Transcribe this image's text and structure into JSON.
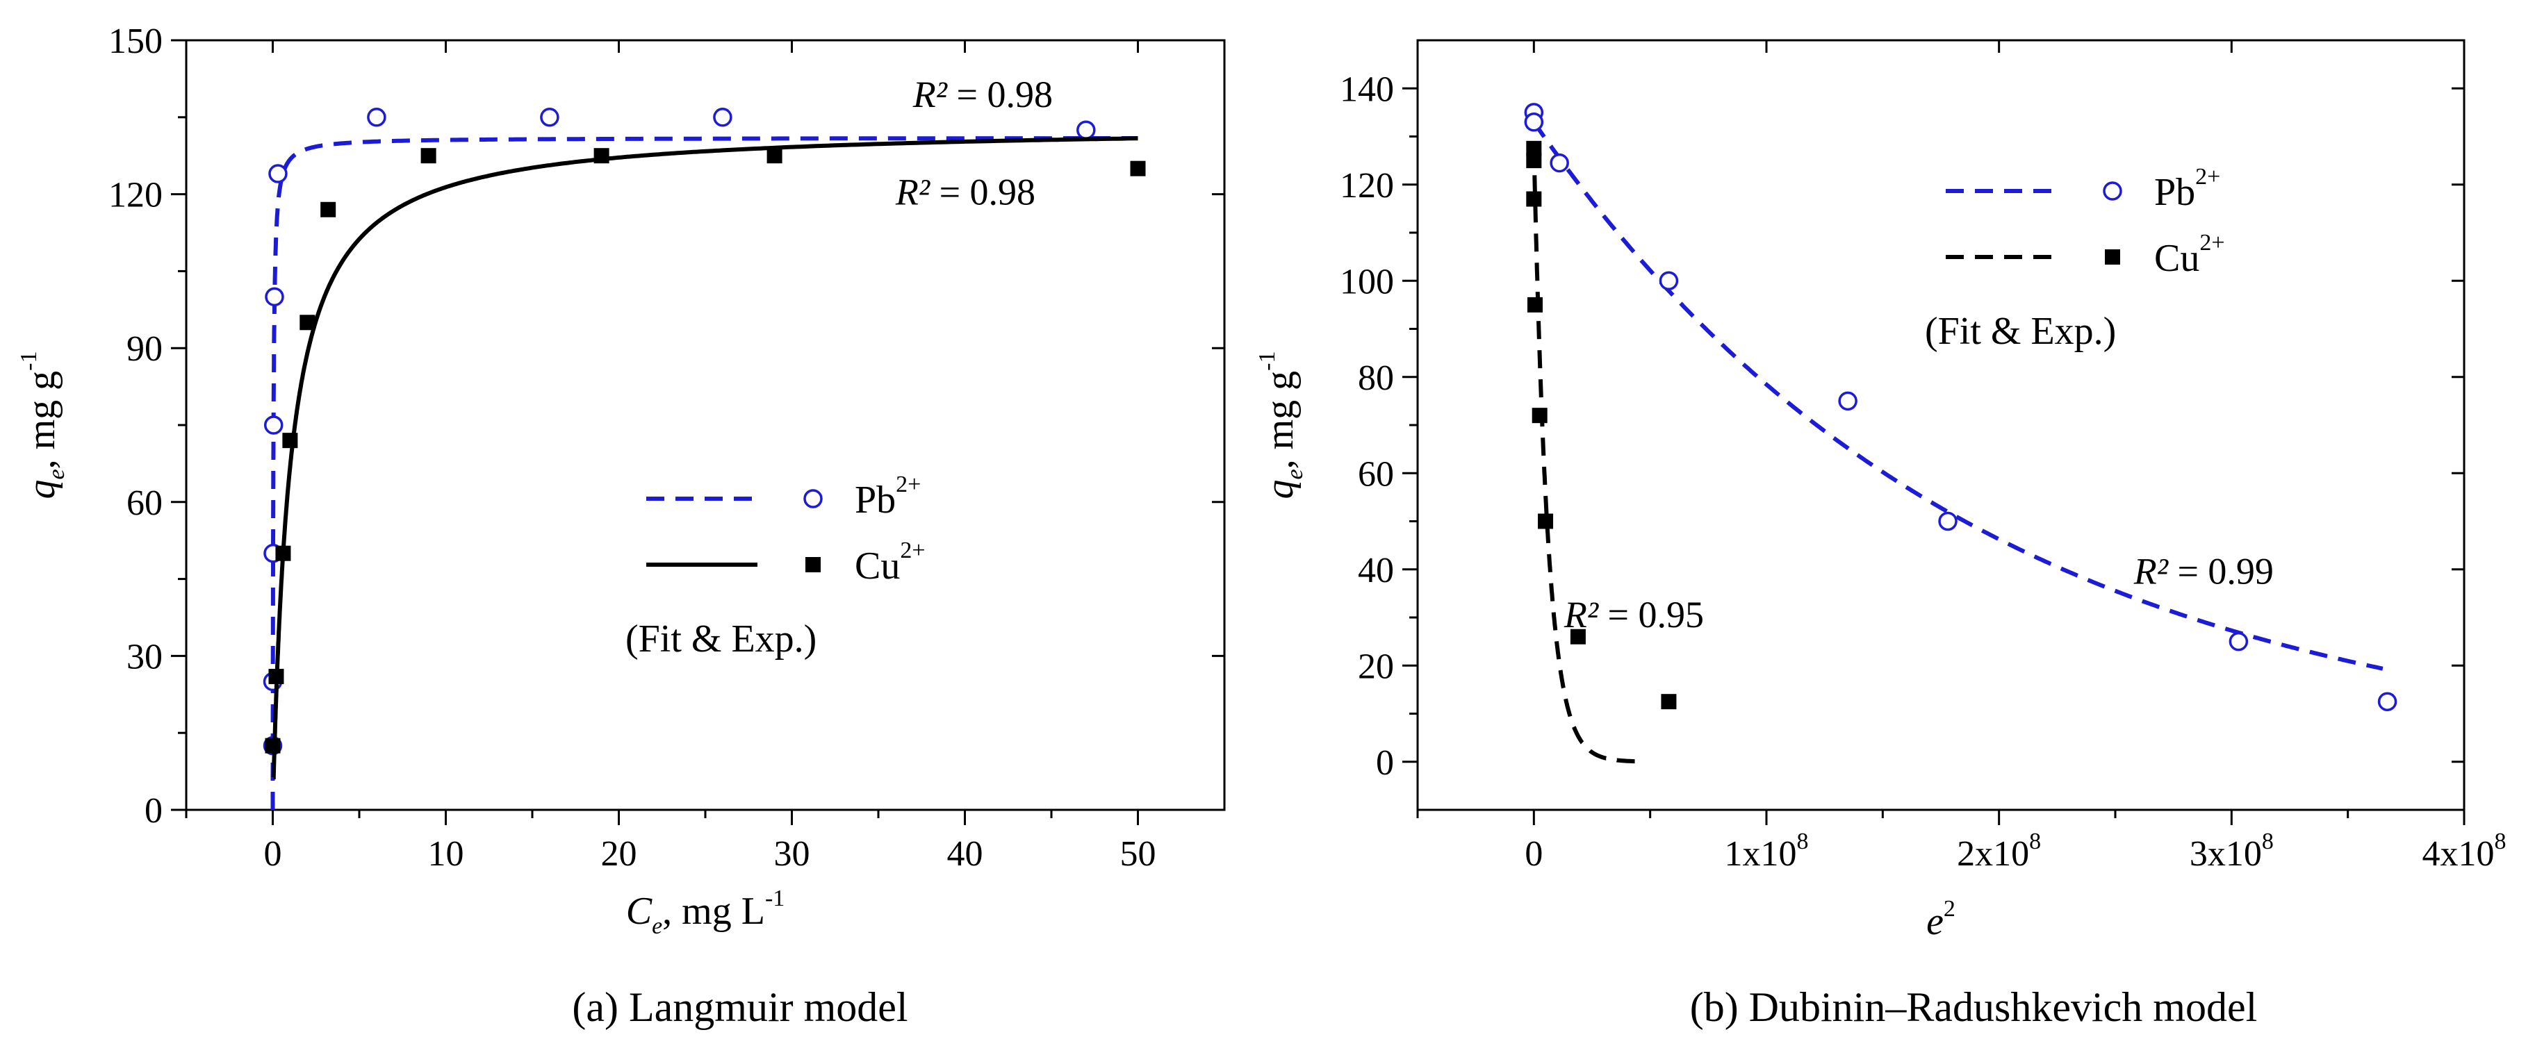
{
  "chart_data": [
    {
      "id": "a",
      "type": "scatter",
      "caption": "(a) Langmuir model",
      "xlabel": {
        "var": "C",
        "sub": "e",
        "unit": ", mg L",
        "unit_sup": "-1"
      },
      "ylabel": {
        "var": "q",
        "sub": "e",
        "unit": ", mg g",
        "unit_sup": "-1"
      },
      "xlim": [
        -5,
        55
      ],
      "ylim": [
        0,
        150
      ],
      "xticks": [
        0,
        10,
        20,
        30,
        40,
        50
      ],
      "yticks": [
        0,
        30,
        60,
        90,
        120,
        150
      ],
      "xtick_labels": [
        "0",
        "10",
        "20",
        "30",
        "40",
        "50"
      ],
      "ytick_labels": [
        "0",
        "30",
        "60",
        "90",
        "120",
        "150"
      ],
      "series": [
        {
          "name": "Pb",
          "ion_sup": "2+",
          "marker": "open-circle",
          "color": "#1c1cd6",
          "fit_style": "dashed",
          "x": [
            0.0,
            0.0,
            0.02,
            0.05,
            0.1,
            0.3,
            6,
            16,
            26,
            47
          ],
          "y": [
            12.5,
            25,
            50,
            75,
            100,
            124,
            135,
            135,
            135,
            132.5
          ],
          "fit": {
            "model": "langmuir",
            "qmax": 131,
            "K": 30,
            "x_range": [
              0,
              50
            ]
          },
          "r2_label": {
            "text": "= 0.98",
            "at_x": 37,
            "at_y": 137
          }
        },
        {
          "name": "Cu",
          "ion_sup": "2+",
          "marker": "filled-square",
          "color": "#000000",
          "fit_style": "solid",
          "x": [
            0.0,
            0.2,
            0.6,
            1.0,
            2.0,
            3.2,
            9,
            19,
            29,
            50
          ],
          "y": [
            12.5,
            26,
            50,
            72,
            95,
            117,
            127.5,
            127.5,
            127.5,
            125
          ],
          "fit": {
            "model": "langmuir",
            "qmax": 133.5,
            "K": 1.0,
            "x_range": [
              0.05,
              50
            ]
          },
          "r2_label": {
            "text": "= 0.98",
            "at_x": 36,
            "at_y": 118
          }
        }
      ],
      "legend_note": "(Fit  &  Exp.)"
    },
    {
      "id": "b",
      "type": "scatter",
      "caption": "(b) Dubinin–Radushkevich model",
      "xlabel": {
        "var": "e",
        "sup": "2"
      },
      "ylabel": {
        "var": "q",
        "sub": "e",
        "unit": ", mg g",
        "unit_sup": "-1"
      },
      "xlim": [
        -50000000,
        400000000
      ],
      "ylim": [
        -10,
        150
      ],
      "xticks": [
        0,
        100000000,
        200000000,
        300000000,
        400000000
      ],
      "yticks": [
        0,
        20,
        40,
        60,
        80,
        100,
        120,
        140
      ],
      "xtick_labels": [
        "0",
        "1x10",
        "2x10",
        "3x10",
        "4x10"
      ],
      "xtick_exp": "8",
      "ytick_labels": [
        "0",
        "20",
        "40",
        "60",
        "80",
        "100",
        "120",
        "140"
      ],
      "series": [
        {
          "name": "Pb",
          "ion_sup": "2+",
          "marker": "open-circle",
          "color": "#1c1cd6",
          "fit_style": "dashed",
          "x": [
            0,
            0,
            11000000,
            58000000,
            135000000,
            178000000,
            303000000,
            367000000
          ],
          "y": [
            135,
            133,
            124.5,
            100,
            75,
            50,
            25,
            12.5
          ],
          "fit": {
            "model": "dr",
            "q0": 133,
            "beta": 5.28e-09,
            "x_range": [
              0,
              365000000
            ]
          },
          "r2_label": {
            "text": "= 0.99",
            "at_x": 258000000,
            "at_y": 37
          }
        },
        {
          "name": "Cu",
          "ion_sup": "2+",
          "marker": "filled-square",
          "color": "#000000",
          "fit_style": "dashed",
          "x": [
            0,
            0,
            0,
            500000,
            2500000,
            5000000,
            19000000,
            58000000
          ],
          "y": [
            127.5,
            125,
            117,
            95,
            72,
            50,
            26,
            12.5
          ],
          "fit": {
            "model": "dr",
            "q0": 128,
            "beta": 1.67e-07,
            "x_range": [
              0,
              48000000
            ]
          },
          "r2_label": {
            "text": "= 0.95",
            "at_x": 13000000,
            "at_y": 28
          }
        }
      ],
      "legend_note": "(Fit  &  Exp.)"
    }
  ],
  "r2_symbol": "R²"
}
